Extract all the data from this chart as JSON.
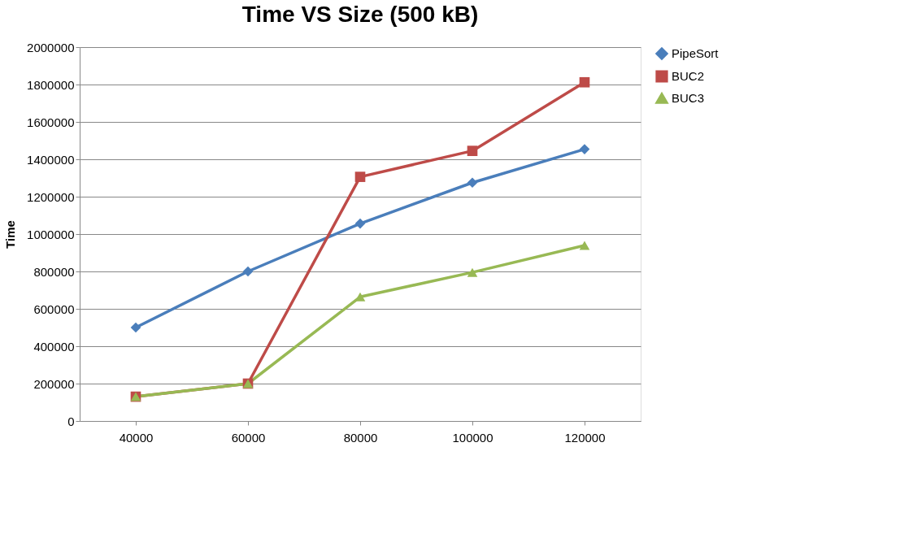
{
  "chart_data": {
    "type": "line",
    "title": "Time VS Size (500 kB)",
    "ylabel": "Time",
    "categories": [
      "40000",
      "60000",
      "80000",
      "100000",
      "120000"
    ],
    "series": [
      {
        "name": "PipeSort",
        "color": "#4a7ebb",
        "marker": "diamond",
        "values": [
          500000,
          800000,
          1056000,
          1275000,
          1454000
        ]
      },
      {
        "name": "BUC2",
        "color": "#be4b48",
        "marker": "square",
        "values": [
          130000,
          200000,
          1306000,
          1445000,
          1812000
        ]
      },
      {
        "name": "BUC3",
        "color": "#98b954",
        "marker": "triangle",
        "values": [
          130000,
          200000,
          664000,
          795000,
          939000
        ]
      }
    ],
    "ylim": [
      0,
      2000000
    ],
    "yticks": [
      0,
      200000,
      400000,
      600000,
      800000,
      1000000,
      1200000,
      1400000,
      1600000,
      1800000,
      2000000
    ],
    "grid": "y",
    "legend": "right"
  }
}
